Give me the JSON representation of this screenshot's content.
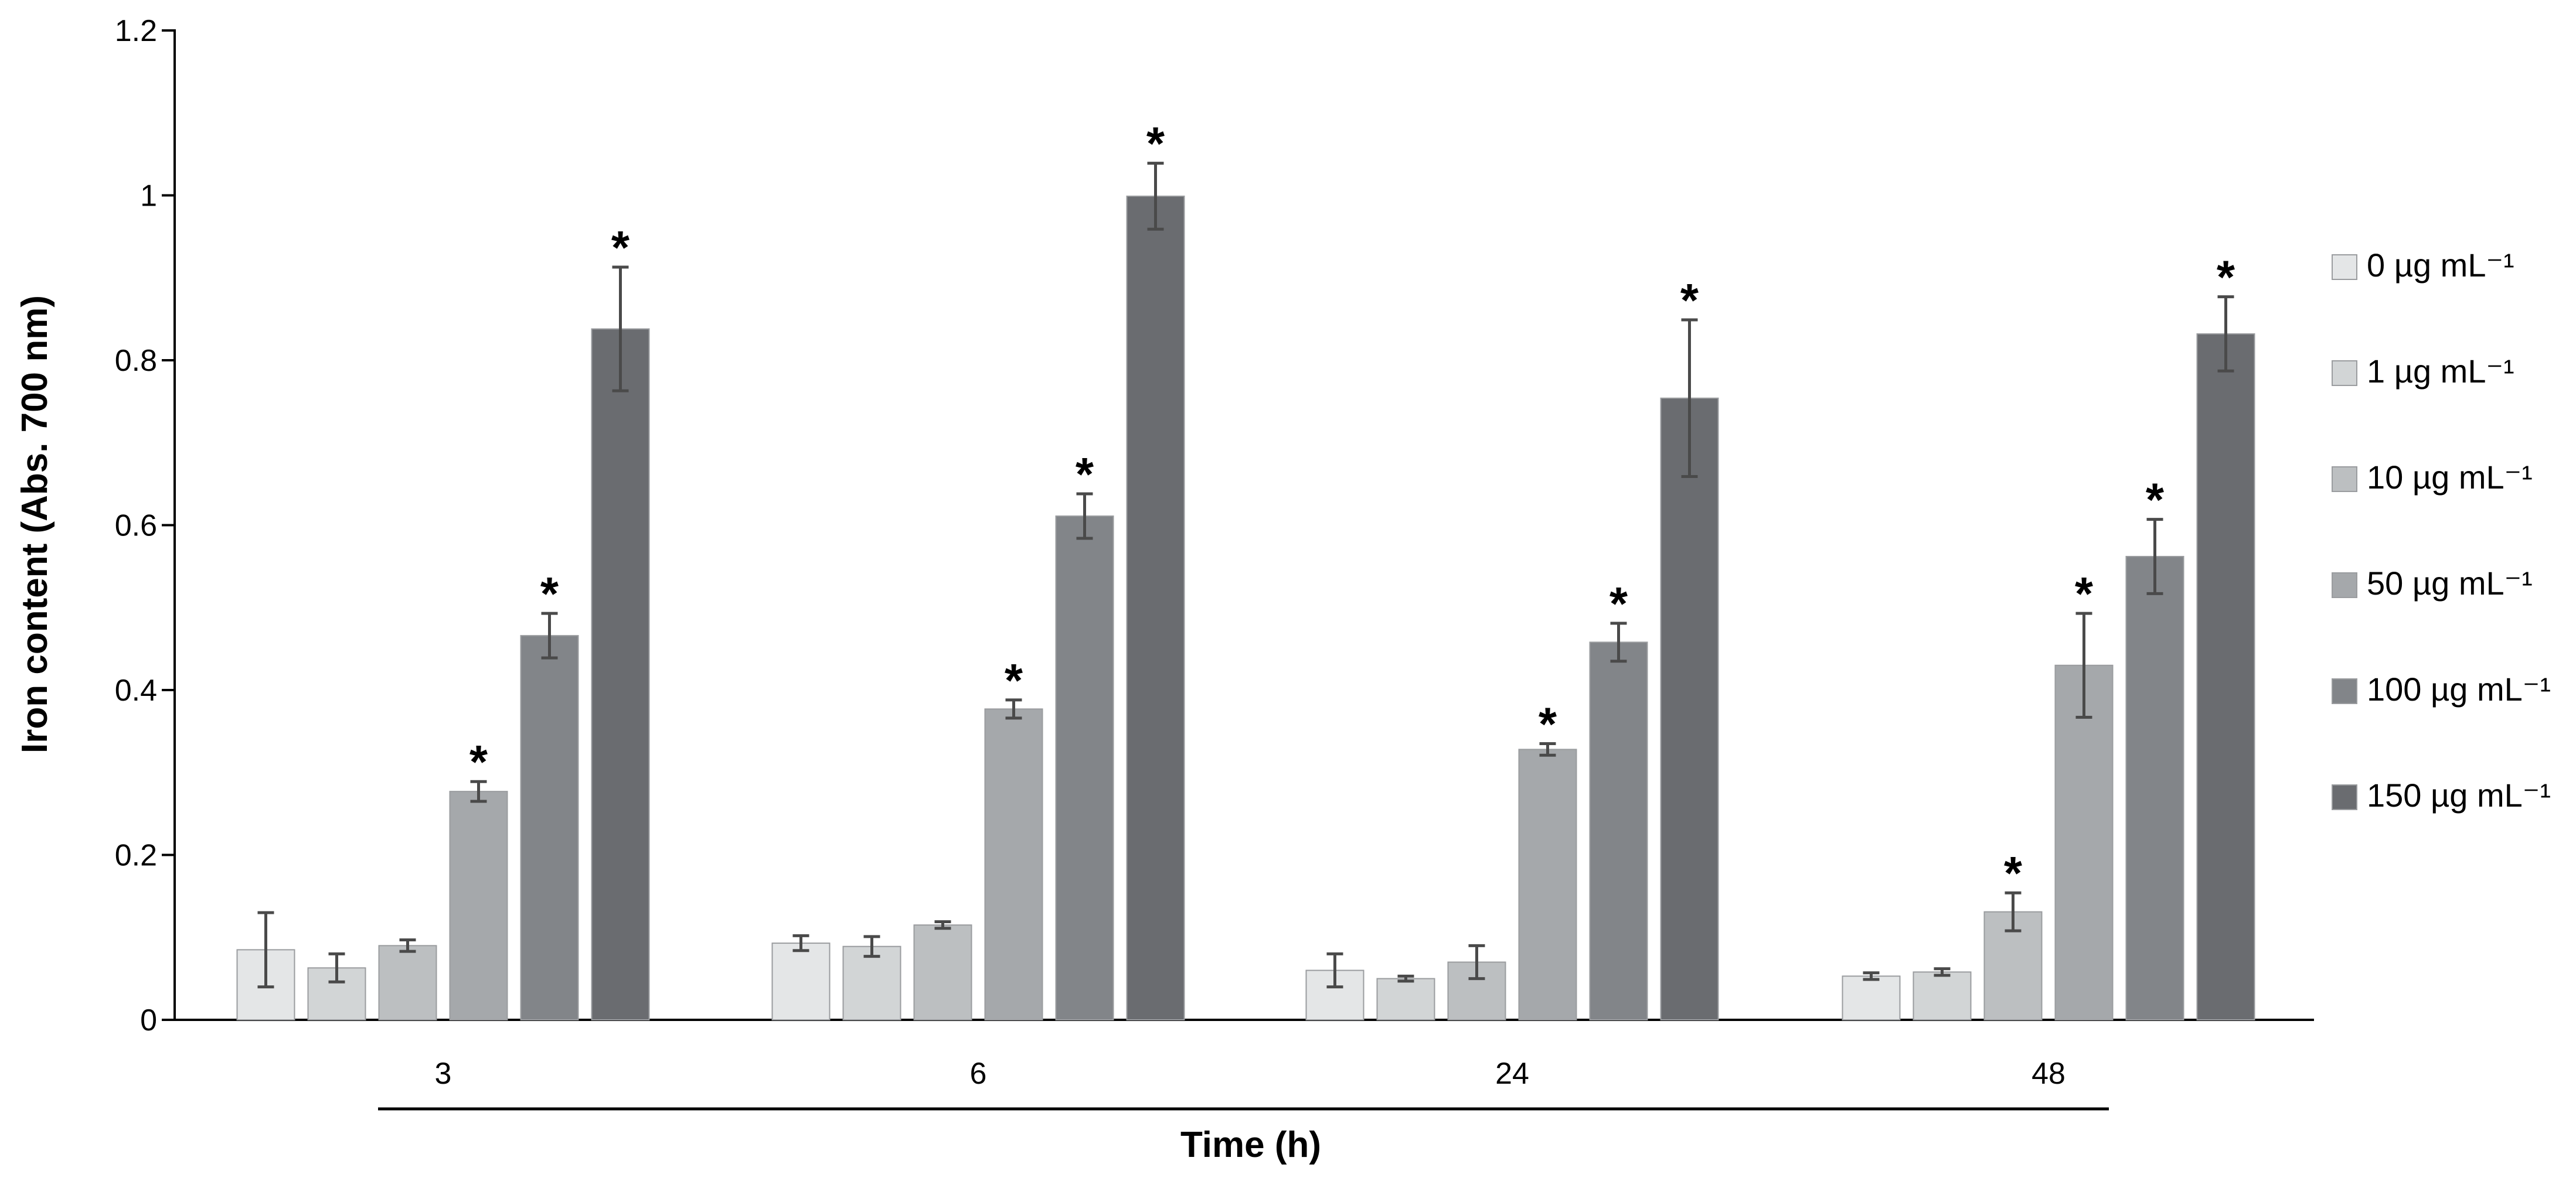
{
  "chart_data": {
    "type": "bar",
    "title": "",
    "xlabel": "Time (h)",
    "ylabel": "Iron content (Abs. 700 nm)",
    "ylim": [
      0,
      1.2
    ],
    "yticks": [
      "0",
      "0.2",
      "0.4",
      "0.6",
      "0.8",
      "1",
      "1.2"
    ],
    "categories": [
      "3",
      "6",
      "24",
      "48"
    ],
    "significance_marker": "*",
    "series": [
      {
        "name": "0 µg mL⁻¹",
        "color": "#e4e6e7",
        "values": [
          0.085,
          0.093,
          0.06,
          0.053
        ],
        "errors": [
          0.045,
          0.009,
          0.02,
          0.004
        ],
        "significant": [
          false,
          false,
          false,
          false
        ]
      },
      {
        "name": "1 µg mL⁻¹",
        "color": "#d2d5d6",
        "values": [
          0.063,
          0.089,
          0.05,
          0.058
        ],
        "errors": [
          0.017,
          0.012,
          0.003,
          0.004
        ],
        "significant": [
          false,
          false,
          false,
          false
        ]
      },
      {
        "name": "10 µg mL⁻¹",
        "color": "#bcbfc1",
        "values": [
          0.09,
          0.115,
          0.07,
          0.131
        ],
        "errors": [
          0.007,
          0.004,
          0.02,
          0.023
        ],
        "significant": [
          false,
          false,
          false,
          true
        ]
      },
      {
        "name": "50 µg mL⁻¹",
        "color": "#a5a8ab",
        "values": [
          0.277,
          0.377,
          0.328,
          0.43
        ],
        "errors": [
          0.012,
          0.011,
          0.007,
          0.063
        ],
        "significant": [
          true,
          true,
          true,
          true
        ]
      },
      {
        "name": "100 µg mL⁻¹",
        "color": "#828589",
        "values": [
          0.466,
          0.611,
          0.458,
          0.562
        ],
        "errors": [
          0.027,
          0.027,
          0.023,
          0.045
        ],
        "significant": [
          true,
          true,
          true,
          true
        ]
      },
      {
        "name": "150 µg mL⁻¹",
        "color": "#6a6c70",
        "values": [
          0.838,
          0.999,
          0.754,
          0.832
        ],
        "errors": [
          0.075,
          0.04,
          0.095,
          0.045
        ],
        "significant": [
          true,
          true,
          true,
          true
        ]
      }
    ]
  }
}
